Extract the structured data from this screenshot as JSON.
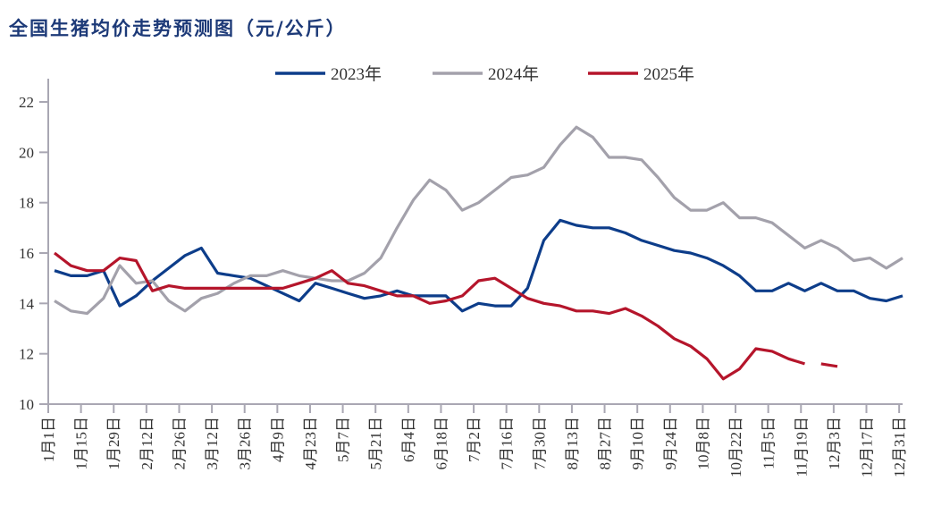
{
  "chart_data": {
    "type": "line",
    "title": "全国生猪均价走势预测图（元/公斤）",
    "xlabel": "",
    "ylabel": "",
    "ylim": [
      10,
      22
    ],
    "yticks": [
      10,
      12,
      14,
      16,
      18,
      20,
      22
    ],
    "x_tick_labels": [
      "1月1日",
      "1月15日",
      "1月29日",
      "2月12日",
      "2月26日",
      "3月12日",
      "3月26日",
      "4月9日",
      "4月23日",
      "5月7日",
      "5月21日",
      "6月4日",
      "6月18日",
      "7月2日",
      "7月16日",
      "7月30日",
      "8月13日",
      "8月27日",
      "9月10日",
      "9月24日",
      "10月8日",
      "10月22日",
      "11月5日",
      "11月19日",
      "12月3日",
      "12月17日",
      "12月31日"
    ],
    "x_frequency": "weekly",
    "grid": false,
    "legend_position": "top-center",
    "series": [
      {
        "name": "2023年",
        "color": "#0d3d8a",
        "values": [
          15.3,
          15.1,
          15.1,
          15.3,
          13.9,
          14.3,
          14.9,
          15.4,
          15.9,
          16.2,
          15.2,
          15.1,
          15.0,
          14.7,
          14.4,
          14.1,
          14.8,
          14.6,
          14.4,
          14.2,
          14.3,
          14.5,
          14.3,
          14.3,
          14.3,
          13.7,
          14.0,
          13.9,
          13.9,
          14.6,
          16.5,
          17.3,
          17.1,
          17.0,
          17.0,
          16.8,
          16.5,
          16.3,
          16.1,
          16.0,
          15.8,
          15.5,
          15.1,
          14.5,
          14.5,
          14.8,
          14.5,
          14.8,
          14.5,
          14.5,
          14.2,
          14.1,
          14.3
        ]
      },
      {
        "name": "2024年",
        "color": "#a3a1ab",
        "values": [
          14.1,
          13.7,
          13.6,
          14.2,
          15.5,
          14.8,
          14.9,
          14.1,
          13.7,
          14.2,
          14.4,
          14.8,
          15.1,
          15.1,
          15.3,
          15.1,
          15.0,
          14.9,
          14.9,
          15.2,
          15.8,
          17.0,
          18.1,
          18.9,
          18.5,
          17.7,
          18.0,
          18.5,
          19.0,
          19.1,
          19.4,
          20.3,
          21.0,
          20.6,
          19.8,
          19.8,
          19.7,
          19.0,
          18.2,
          17.7,
          17.7,
          18.0,
          17.4,
          17.4,
          17.2,
          16.7,
          16.2,
          16.5,
          16.2,
          15.7,
          15.8,
          15.4,
          15.8
        ]
      },
      {
        "name": "2025年",
        "color": "#b5152b",
        "values": [
          16.0,
          15.5,
          15.3,
          15.3,
          15.8,
          15.7,
          14.5,
          14.7,
          14.6,
          14.6,
          14.6,
          14.6,
          14.6,
          14.6,
          14.6,
          14.8,
          15.0,
          15.3,
          14.8,
          14.7,
          14.5,
          14.3,
          14.3,
          14.0,
          14.1,
          14.3,
          14.9,
          15.0,
          14.6,
          14.2,
          14.0,
          13.9,
          13.7,
          13.7,
          13.6,
          13.8,
          13.5,
          13.1,
          12.6,
          12.3,
          11.8,
          11.0,
          11.4,
          12.2,
          12.1,
          11.8,
          11.6
        ],
        "forecast_values": [
          11.6,
          11.5
        ]
      }
    ]
  }
}
